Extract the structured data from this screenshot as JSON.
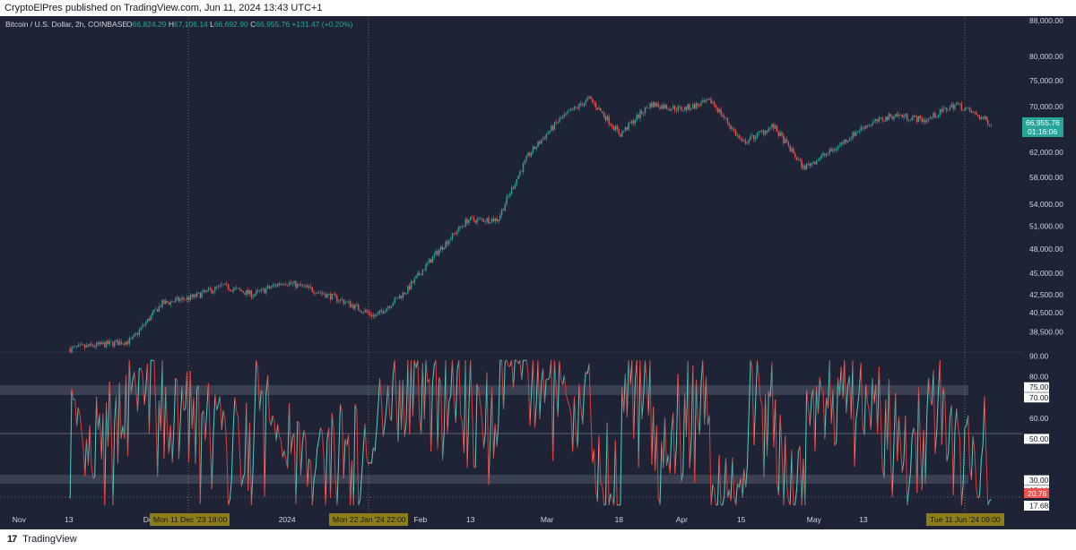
{
  "header": {
    "published_text": "CryptoElPres published on TradingView.com, Jun 11, 2024 13:43 UTC+1"
  },
  "legend": {
    "symbol": "Bitcoin / U.S. Dollar, 2h, COINBASE",
    "o_label": "O",
    "o_value": "66,824.29",
    "h_label": "H",
    "h_value": "67,106.14",
    "l_label": "L",
    "l_value": "66,692.90",
    "c_label": "C",
    "c_value": "66,955.76",
    "change": "+131.47 (+0.20%)"
  },
  "price_tag": {
    "price": "66,955.76",
    "countdown": "01:16:06"
  },
  "rsi_tag": {
    "value": "20.76"
  },
  "crosshair_labels": [
    "Mon 11 Dec '23   18:00",
    "Mon 22 Jan '24   22:00",
    "Tue 11 Jun '24   09:00"
  ],
  "footer": {
    "brand_logo": "17",
    "brand": "TradingView"
  },
  "colors": {
    "background": "#1e2436",
    "up": "#26a69a",
    "down": "#ef5350",
    "rsi_up": "#4dd0c4",
    "rsi_down": "#e53935",
    "band": "#3a4052",
    "axis_text": "#d1d4dc",
    "label_bg": "#8c7d16"
  },
  "chart_data": [
    {
      "type": "candlestick",
      "title": "Bitcoin / U.S. Dollar, 2h, COINBASE",
      "y_scale": "log",
      "ylim": [
        36500,
        89000
      ],
      "y_ticks": [
        "88,000.00",
        "80,000.00",
        "75,000.00",
        "70,000.00",
        "66,000.00",
        "62,000.00",
        "58,000.00",
        "54,000.00",
        "51,000.00",
        "48,000.00",
        "45,000.00",
        "42,500.00",
        "40,500.00",
        "38,500.00"
      ],
      "x_ticks": [
        "Nov",
        "13",
        "Dec",
        "2024",
        "Feb",
        "13",
        "Mar",
        "18",
        "Apr",
        "15",
        "May",
        "13",
        "Jun"
      ],
      "x_dates": [
        "2023-11-13",
        "2023-11-20",
        "2023-11-27",
        "2023-12-04",
        "2023-12-11",
        "2023-12-18",
        "2023-12-25",
        "2024-01-01",
        "2024-01-08",
        "2024-01-15",
        "2024-01-22",
        "2024-01-29",
        "2024-02-05",
        "2024-02-12",
        "2024-02-19",
        "2024-02-26",
        "2024-03-04",
        "2024-03-11",
        "2024-03-18",
        "2024-03-25",
        "2024-04-01",
        "2024-04-08",
        "2024-04-15",
        "2024-04-22",
        "2024-04-29",
        "2024-05-06",
        "2024-05-13",
        "2024-05-20",
        "2024-05-27",
        "2024-06-03",
        "2024-06-11"
      ],
      "close": [
        36800,
        37200,
        37600,
        41500,
        42200,
        43500,
        42500,
        44000,
        43000,
        41700,
        40100,
        42900,
        47500,
        51800,
        51900,
        61500,
        67500,
        71500,
        65000,
        70500,
        69500,
        71000,
        63500,
        66500,
        59500,
        62500,
        66500,
        68500,
        67500,
        70500,
        66955.76
      ]
    },
    {
      "type": "line",
      "title": "RSI",
      "ylim": [
        14,
        92
      ],
      "y_ticks": [
        "90.00",
        "80.00",
        "75.00",
        "70.00",
        "60.00",
        "50.00",
        "30.00",
        "25.00",
        "17.68"
      ],
      "bands": [
        [
          70,
          75
        ],
        [
          25,
          30
        ]
      ],
      "midline": 50,
      "last_value": 20.76
    }
  ]
}
